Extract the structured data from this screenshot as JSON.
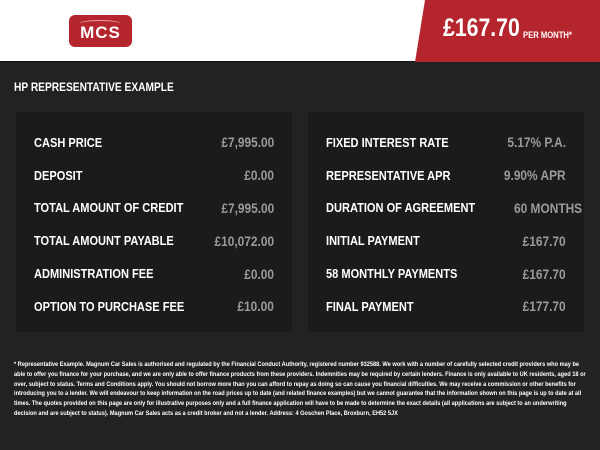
{
  "header": {
    "logo_text": "MCS",
    "price": "£167.70",
    "per_month": "PER MONTH*",
    "accent_color": "#b5252d"
  },
  "title": "HP REPRESENTATIVE EXAMPLE",
  "left_panel": [
    {
      "label": "CASH PRICE",
      "value": "£7,995.00"
    },
    {
      "label": "DEPOSIT",
      "value": "£0.00"
    },
    {
      "label": "TOTAL AMOUNT OF CREDIT",
      "value": "£7,995.00"
    },
    {
      "label": "TOTAL AMOUNT PAYABLE",
      "value": "£10,072.00"
    },
    {
      "label": "ADMINISTRATION FEE",
      "value": "£0.00"
    },
    {
      "label": "OPTION TO PURCHASE FEE",
      "value": "£10.00"
    }
  ],
  "right_panel": [
    {
      "label": "FIXED INTEREST RATE",
      "value": "5.17% P.A."
    },
    {
      "label": "REPRESENTATIVE APR",
      "value": "9.90% APR"
    },
    {
      "label": "DURATION OF AGREEMENT",
      "value": "60 MONTHS"
    },
    {
      "label": "INITIAL PAYMENT",
      "value": "£167.70"
    },
    {
      "label": "58 MONTHLY PAYMENTS",
      "value": "£167.70"
    },
    {
      "label": "FINAL PAYMENT",
      "value": "£177.70"
    }
  ],
  "footnote": "* Representative Example. Magnum Car Sales is authorised and regulated by the Financial Conduct Authority, registered number 932588. We work with a number of carefully selected credit providers who may be able to offer you finance for your purchase, and we are only able to offer finance products from these providers. Indemnities may be required by certain lenders. Finance is only available to UK residents, aged 18 or over, subject to status. Terms and Conditions apply. You should not borrow more than you can afford to repay as doing so can cause you financial difficulties. We may receive a commission or other benefits for introducing you to a lender. We will endeavour to keep information on the road prices up to date (and related finance examples) but we cannot guarantee that the information shown on this page is up to date at all times. The quotes provided on this page are only for illustrative purposes only and a full finance application will have to be made to determine the exact details (all applications are subject to an underwriting decision and are subject to status). Magnum Car Sales acts as a credit broker and not a lender. Address: 4 Goschen Place, Broxburn, EH52 5JX"
}
